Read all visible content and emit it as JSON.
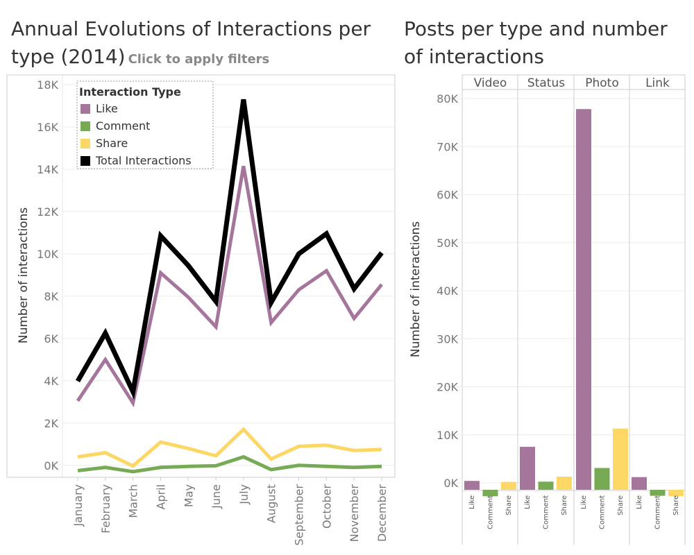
{
  "left_title": "Annual Evolutions of Interactions per type (2014)",
  "left_subtitle": "Click to apply filters",
  "right_title": "Posts per type and number of interactions",
  "colors": {
    "Like": "#a5759c",
    "Comment": "#77aa55",
    "Share": "#fcd766",
    "Total Interactions": "#000000",
    "grid": "#ececec",
    "axis": "#cccccc"
  },
  "chart_data": [
    {
      "type": "line",
      "title": "Annual Evolutions of Interactions per type (2014)",
      "xlabel": "",
      "ylabel": "Number of interactions",
      "ylim": [
        -500,
        18000
      ],
      "y_ticks": [
        0,
        2000,
        4000,
        6000,
        8000,
        10000,
        12000,
        14000,
        16000,
        18000
      ],
      "y_tick_labels": [
        "0K",
        "2K",
        "4K",
        "6K",
        "8K",
        "10K",
        "12K",
        "14K",
        "16K",
        "18K"
      ],
      "categories": [
        "January",
        "February",
        "March",
        "April",
        "May",
        "June",
        "July",
        "August",
        "September",
        "October",
        "November",
        "December"
      ],
      "legend_title": "Interaction Type",
      "legend_position": "top-left",
      "grid": true,
      "series": [
        {
          "name": "Like",
          "values": [
            3050,
            5000,
            2950,
            9100,
            7950,
            6550,
            14150,
            6750,
            8300,
            9200,
            6950,
            8550
          ]
        },
        {
          "name": "Comment",
          "values": [
            -250,
            -100,
            -300,
            -100,
            -50,
            -20,
            400,
            -200,
            0,
            -50,
            -100,
            -50
          ]
        },
        {
          "name": "Share",
          "values": [
            400,
            600,
            -30,
            1100,
            800,
            450,
            1700,
            300,
            900,
            950,
            700,
            750
          ]
        },
        {
          "name": "Total Interactions",
          "values": [
            3980,
            6250,
            3480,
            10850,
            9450,
            7750,
            17300,
            7700,
            10000,
            10950,
            8350,
            10050
          ]
        }
      ]
    },
    {
      "type": "bar",
      "title": "Posts per type and number of interactions",
      "ylabel": "Number of interactions",
      "ylim": [
        -1500,
        84000
      ],
      "y_ticks": [
        0,
        10000,
        20000,
        30000,
        40000,
        50000,
        60000,
        70000,
        80000
      ],
      "y_tick_labels": [
        "0K",
        "10K",
        "20K",
        "30K",
        "40K",
        "50K",
        "60K",
        "70K",
        "80K"
      ],
      "grid": true,
      "facets": [
        "Video",
        "Status",
        "Photo",
        "Link"
      ],
      "categories": [
        "Like",
        "Comment",
        "Share"
      ],
      "series": [
        {
          "facet": "Video",
          "values": [
            400,
            -100,
            200
          ]
        },
        {
          "facet": "Status",
          "values": [
            7500,
            250,
            1300
          ]
        },
        {
          "facet": "Photo",
          "values": [
            77800,
            3100,
            11300
          ]
        },
        {
          "facet": "Link",
          "values": [
            1200,
            -200,
            -100
          ]
        }
      ]
    }
  ]
}
